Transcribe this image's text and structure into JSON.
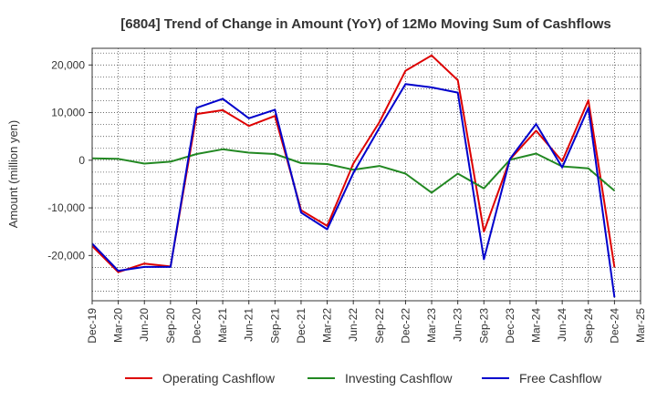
{
  "chart_data": {
    "type": "line",
    "title": "[6804]  Trend of Change in Amount (YoY) of 12Mo Moving Sum of Cashflows",
    "xlabel": "",
    "ylabel": "Amount (million yen)",
    "ylim": [
      -29500,
      23500
    ],
    "yticks": [
      20000,
      10000,
      0,
      -10000,
      -20000
    ],
    "ytick_labels": [
      "20,000",
      "10,000",
      "0",
      "-10,000",
      "-20,000"
    ],
    "grid": true,
    "legend_position": "bottom",
    "categories": [
      "Dec-19",
      "Mar-20",
      "Jun-20",
      "Sep-20",
      "Dec-20",
      "Mar-21",
      "Jun-21",
      "Sep-21",
      "Dec-21",
      "Mar-22",
      "Jun-22",
      "Sep-22",
      "Dec-22",
      "Mar-23",
      "Jun-23",
      "Sep-23",
      "Dec-23",
      "Mar-24",
      "Jun-24",
      "Sep-24",
      "Dec-24",
      "Mar-25"
    ],
    "series": [
      {
        "name": "Operating Cashflow",
        "color": "#dd0000",
        "values": [
          -18000,
          -23500,
          -21700,
          -22300,
          9700,
          10500,
          7200,
          9300,
          -10500,
          -13800,
          -700,
          8000,
          18800,
          22000,
          16800,
          -15000,
          200,
          6200,
          -200,
          12600,
          -22500,
          null
        ]
      },
      {
        "name": "Investing Cashflow",
        "color": "#228822",
        "values": [
          400,
          300,
          -700,
          -300,
          1300,
          2300,
          1600,
          1300,
          -600,
          -800,
          -2000,
          -1200,
          -2800,
          -6800,
          -2800,
          -5900,
          100,
          1400,
          -1300,
          -1700,
          -6400,
          null
        ]
      },
      {
        "name": "Free Cashflow",
        "color": "#0000cc",
        "values": [
          -17500,
          -23200,
          -22400,
          -22400,
          11000,
          12900,
          8800,
          10600,
          -11000,
          -14500,
          -2700,
          6800,
          16000,
          15300,
          14200,
          -20800,
          300,
          7600,
          -1500,
          11000,
          -28800,
          null
        ]
      }
    ]
  }
}
